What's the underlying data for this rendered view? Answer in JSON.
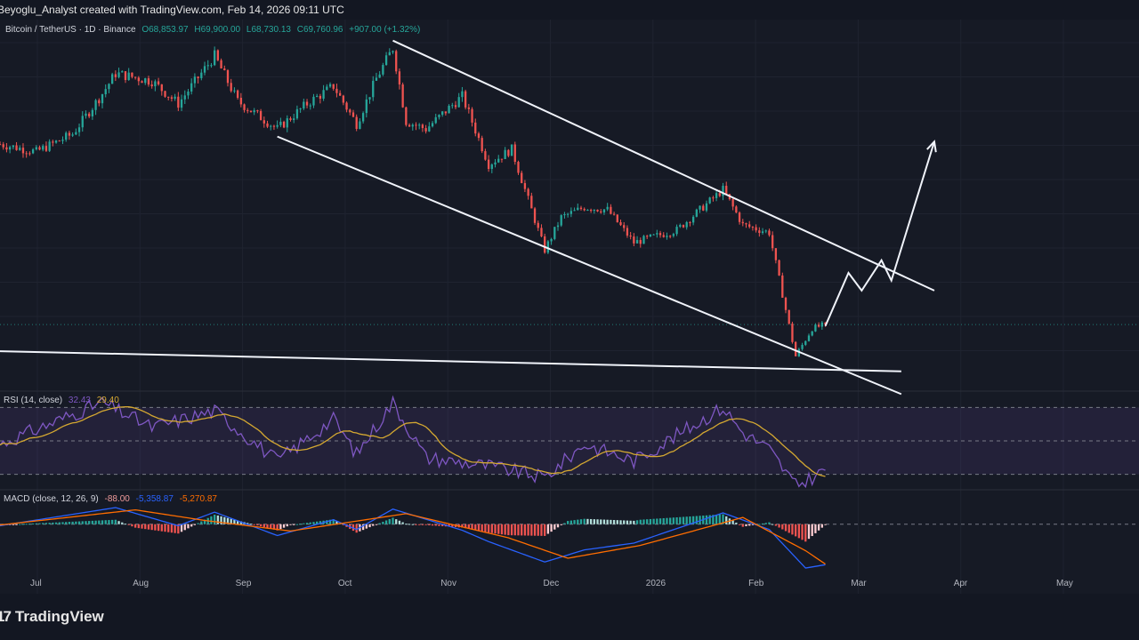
{
  "header": {
    "attribution": "Beyoglu_Analyst created with TradingView.com, Feb 14, 2026 09:11 UTC"
  },
  "price_legend": {
    "symbol": "Bitcoin / TetherUS · 1D · Binance",
    "open": "O68,853.97",
    "high": "H69,900.00",
    "low": "L68,730.13",
    "close": "C69,760.96",
    "change": "+907.00 (+1.32%)"
  },
  "rsi_legend": {
    "label": "RSI (14, close)",
    "rsi": "32.43",
    "ma": "29.40"
  },
  "macd_legend": {
    "label": "MACD (close, 12, 26, 9)",
    "hist": "-88.00",
    "macd": "-5,358.87",
    "signal": "-5,270.87"
  },
  "footer": {
    "brand": "TradingView"
  },
  "colors": {
    "up": "#26a69a",
    "down": "#ef5350",
    "rsi_line": "#7e57c2",
    "rsi_ma": "#d4a831",
    "macd_line": "#2962ff",
    "signal_line": "#ff6d00",
    "background": "#161a25"
  },
  "chart_data": [
    {
      "type": "candlestick",
      "title": "Bitcoin / TetherUS · 1D · Binance",
      "x_tick_labels": [
        "Jul",
        "Aug",
        "Sep",
        "Oct",
        "Nov",
        "Dec",
        "2026",
        "Feb",
        "Mar",
        "Apr",
        "May"
      ],
      "x_range": [
        "2025-06-09",
        "2026-05-20"
      ],
      "y_range": [
        58000,
        127000
      ],
      "grid": true,
      "ohlc_anchor_closes": [
        {
          "date": "2025-06-09",
          "close": 105500
        },
        {
          "date": "2025-06-20",
          "close": 104000
        },
        {
          "date": "2025-07-01",
          "close": 107500
        },
        {
          "date": "2025-07-10",
          "close": 115500
        },
        {
          "date": "2025-07-14",
          "close": 119500
        },
        {
          "date": "2025-07-25",
          "close": 118000
        },
        {
          "date": "2025-08-02",
          "close": 113500
        },
        {
          "date": "2025-08-13",
          "close": 123000
        },
        {
          "date": "2025-08-20",
          "close": 114000
        },
        {
          "date": "2025-09-01",
          "close": 108500
        },
        {
          "date": "2025-09-10",
          "close": 113500
        },
        {
          "date": "2025-09-18",
          "close": 117000
        },
        {
          "date": "2025-09-25",
          "close": 109500
        },
        {
          "date": "2025-10-01",
          "close": 118500
        },
        {
          "date": "2025-10-06",
          "close": 124500
        },
        {
          "date": "2025-10-10",
          "close": 110000
        },
        {
          "date": "2025-10-16",
          "close": 108500
        },
        {
          "date": "2025-10-27",
          "close": 115000
        },
        {
          "date": "2025-11-04",
          "close": 101500
        },
        {
          "date": "2025-11-11",
          "close": 104500
        },
        {
          "date": "2025-11-21",
          "close": 84500
        },
        {
          "date": "2025-11-26",
          "close": 91000
        },
        {
          "date": "2025-12-03",
          "close": 93000
        },
        {
          "date": "2025-12-10",
          "close": 92500
        },
        {
          "date": "2025-12-18",
          "close": 86000
        },
        {
          "date": "2025-12-31",
          "close": 88500
        },
        {
          "date": "2026-01-14",
          "close": 96500
        },
        {
          "date": "2026-01-20",
          "close": 89500
        },
        {
          "date": "2026-01-28",
          "close": 88000
        },
        {
          "date": "2026-02-05",
          "close": 63500
        },
        {
          "date": "2026-02-10",
          "close": 69000
        },
        {
          "date": "2026-02-14",
          "close": 69760.96
        }
      ],
      "annotations": [
        {
          "type": "trendline",
          "label": "upper channel",
          "from": {
            "date": "2025-10-06",
            "price": 126000
          },
          "to": {
            "date": "2026-03-19",
            "price": 76500
          }
        },
        {
          "type": "trendline",
          "label": "lower channel",
          "from": {
            "date": "2025-09-01",
            "price": 107000
          },
          "to": {
            "date": "2026-03-09",
            "price": 56000
          }
        },
        {
          "type": "trendline",
          "label": "support",
          "from": {
            "date": "2025-06-09",
            "price": 64500
          },
          "to": {
            "date": "2026-03-09",
            "price": 60500
          }
        },
        {
          "type": "path",
          "label": "projection",
          "points": [
            {
              "date": "2026-02-14",
              "price": 69500
            },
            {
              "date": "2026-02-21",
              "price": 80000
            },
            {
              "date": "2026-02-25",
              "price": 76500
            },
            {
              "date": "2026-03-03",
              "price": 82500
            },
            {
              "date": "2026-03-06",
              "price": 78500
            },
            {
              "date": "2026-03-19",
              "price": 106000
            }
          ]
        }
      ]
    },
    {
      "type": "line",
      "title": "RSI (14, close)",
      "series": [
        {
          "name": "RSI",
          "last": 32.43
        },
        {
          "name": "RSI MA",
          "last": 29.4
        }
      ],
      "bands": [
        70,
        50,
        30
      ],
      "y_range": [
        25,
        75
      ],
      "rsi_anchors": [
        {
          "date": "2025-06-09",
          "value": 48
        },
        {
          "date": "2025-07-10",
          "value": 73
        },
        {
          "date": "2025-07-25",
          "value": 58
        },
        {
          "date": "2025-08-13",
          "value": 68
        },
        {
          "date": "2025-09-01",
          "value": 38
        },
        {
          "date": "2025-09-18",
          "value": 63
        },
        {
          "date": "2025-09-25",
          "value": 42
        },
        {
          "date": "2025-10-06",
          "value": 73
        },
        {
          "date": "2025-10-16",
          "value": 40
        },
        {
          "date": "2025-11-04",
          "value": 35
        },
        {
          "date": "2025-11-21",
          "value": 28
        },
        {
          "date": "2025-12-03",
          "value": 48
        },
        {
          "date": "2025-12-18",
          "value": 38
        },
        {
          "date": "2026-01-14",
          "value": 70
        },
        {
          "date": "2026-01-20",
          "value": 55
        },
        {
          "date": "2026-01-28",
          "value": 45
        },
        {
          "date": "2026-02-05",
          "value": 23
        },
        {
          "date": "2026-02-14",
          "value": 32.43
        }
      ]
    },
    {
      "type": "line",
      "title": "MACD (close, 12, 26, 9)",
      "series": [
        {
          "name": "Histogram",
          "last": -88.0
        },
        {
          "name": "MACD",
          "last": -5358.87
        },
        {
          "name": "Signal",
          "last": -5270.87
        }
      ],
      "y_range": [
        -6500,
        3500
      ],
      "macd_anchors": [
        {
          "date": "2025-06-09",
          "value": -200
        },
        {
          "date": "2025-07-14",
          "value": 2200
        },
        {
          "date": "2025-08-02",
          "value": -200
        },
        {
          "date": "2025-08-13",
          "value": 1600
        },
        {
          "date": "2025-09-01",
          "value": -1500
        },
        {
          "date": "2025-09-18",
          "value": 600
        },
        {
          "date": "2025-09-25",
          "value": -700
        },
        {
          "date": "2025-10-06",
          "value": 2000
        },
        {
          "date": "2025-10-27",
          "value": -800
        },
        {
          "date": "2025-11-04",
          "value": -2300
        },
        {
          "date": "2025-11-21",
          "value": -5000
        },
        {
          "date": "2025-12-03",
          "value": -3400
        },
        {
          "date": "2025-12-18",
          "value": -2500
        },
        {
          "date": "2026-01-14",
          "value": 1500
        },
        {
          "date": "2026-01-28",
          "value": -700
        },
        {
          "date": "2026-02-08",
          "value": -5800
        },
        {
          "date": "2026-02-14",
          "value": -5358.87
        }
      ],
      "signal_anchors": [
        {
          "date": "2025-06-09",
          "value": -100
        },
        {
          "date": "2025-07-20",
          "value": 1900
        },
        {
          "date": "2025-08-10",
          "value": 500
        },
        {
          "date": "2025-09-05",
          "value": -900
        },
        {
          "date": "2025-10-10",
          "value": 1400
        },
        {
          "date": "2025-11-10",
          "value": -1800
        },
        {
          "date": "2025-11-28",
          "value": -4500
        },
        {
          "date": "2025-12-20",
          "value": -2800
        },
        {
          "date": "2026-01-20",
          "value": 900
        },
        {
          "date": "2026-02-08",
          "value": -3500
        },
        {
          "date": "2026-02-14",
          "value": -5270.87
        }
      ]
    }
  ]
}
